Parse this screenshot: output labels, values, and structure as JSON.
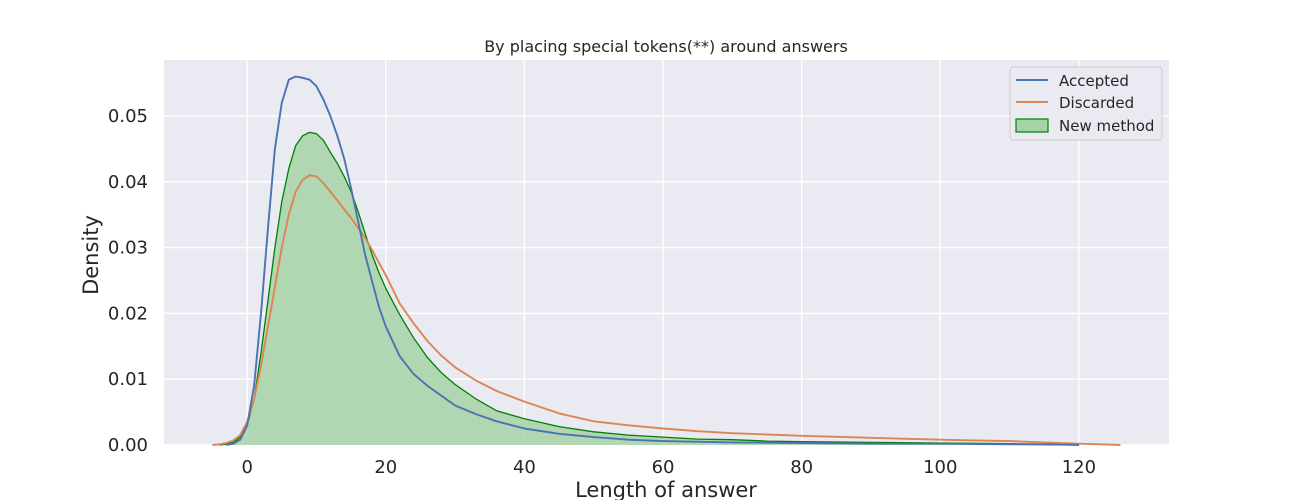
{
  "chart_data": {
    "type": "area",
    "title": "By placing special tokens(**) around answers",
    "xlabel": "Length of answer",
    "ylabel": "Density",
    "xlim": [
      -12,
      133
    ],
    "ylim": [
      0,
      0.0585
    ],
    "xticks": [
      0,
      20,
      40,
      60,
      80,
      100,
      120
    ],
    "yticks": [
      0.0,
      0.01,
      0.02,
      0.03,
      0.04,
      0.05
    ],
    "ytick_labels": [
      "0.00",
      "0.01",
      "0.02",
      "0.03",
      "0.04",
      "0.05"
    ],
    "grid": true,
    "legend_position": "upper-right",
    "series": [
      {
        "name": "Accepted",
        "style": "line",
        "color": "#4c72b0",
        "points": [
          [
            -3,
            0
          ],
          [
            -2,
            0.0002
          ],
          [
            -1,
            0.0008
          ],
          [
            0,
            0.003
          ],
          [
            1,
            0.009
          ],
          [
            2,
            0.02
          ],
          [
            3,
            0.033
          ],
          [
            4,
            0.045
          ],
          [
            5,
            0.052
          ],
          [
            6,
            0.0555
          ],
          [
            7,
            0.056
          ],
          [
            8,
            0.0558
          ],
          [
            9,
            0.0555
          ],
          [
            10,
            0.0545
          ],
          [
            11,
            0.0525
          ],
          [
            12,
            0.05
          ],
          [
            13,
            0.047
          ],
          [
            14,
            0.0435
          ],
          [
            15,
            0.039
          ],
          [
            16,
            0.034
          ],
          [
            17,
            0.029
          ],
          [
            18,
            0.025
          ],
          [
            19,
            0.021
          ],
          [
            20,
            0.018
          ],
          [
            22,
            0.0135
          ],
          [
            24,
            0.0108
          ],
          [
            26,
            0.009
          ],
          [
            28,
            0.0075
          ],
          [
            30,
            0.006
          ],
          [
            33,
            0.0047
          ],
          [
            36,
            0.0036
          ],
          [
            40,
            0.0025
          ],
          [
            45,
            0.0017
          ],
          [
            50,
            0.0012
          ],
          [
            55,
            0.0008
          ],
          [
            60,
            0.0006
          ],
          [
            70,
            0.0004
          ],
          [
            80,
            0.0003
          ],
          [
            90,
            0.0002
          ],
          [
            100,
            0.0002
          ],
          [
            110,
            0.0001
          ],
          [
            118,
            5e-05
          ],
          [
            120,
            0
          ]
        ]
      },
      {
        "name": "Discarded",
        "style": "line",
        "color": "#dd8452",
        "points": [
          [
            -5,
            0
          ],
          [
            -4,
            0.0001
          ],
          [
            -3,
            0.0003
          ],
          [
            -2,
            0.0007
          ],
          [
            -1,
            0.0015
          ],
          [
            0,
            0.0035
          ],
          [
            1,
            0.007
          ],
          [
            2,
            0.012
          ],
          [
            3,
            0.018
          ],
          [
            4,
            0.024
          ],
          [
            5,
            0.03
          ],
          [
            6,
            0.035
          ],
          [
            7,
            0.0385
          ],
          [
            8,
            0.0403
          ],
          [
            9,
            0.041
          ],
          [
            10,
            0.0408
          ],
          [
            11,
            0.0398
          ],
          [
            12,
            0.0385
          ],
          [
            13,
            0.0372
          ],
          [
            14,
            0.0358
          ],
          [
            15,
            0.0345
          ],
          [
            16,
            0.033
          ],
          [
            17,
            0.0315
          ],
          [
            18,
            0.0297
          ],
          [
            19,
            0.0277
          ],
          [
            20,
            0.0258
          ],
          [
            22,
            0.0215
          ],
          [
            24,
            0.0185
          ],
          [
            26,
            0.0158
          ],
          [
            28,
            0.0136
          ],
          [
            30,
            0.0118
          ],
          [
            33,
            0.0098
          ],
          [
            36,
            0.0082
          ],
          [
            40,
            0.0066
          ],
          [
            45,
            0.0048
          ],
          [
            50,
            0.0036
          ],
          [
            55,
            0.003
          ],
          [
            60,
            0.0025
          ],
          [
            65,
            0.0021
          ],
          [
            70,
            0.0018
          ],
          [
            75,
            0.0016
          ],
          [
            80,
            0.0014
          ],
          [
            90,
            0.0011
          ],
          [
            100,
            0.0008
          ],
          [
            105,
            0.0007
          ],
          [
            110,
            0.0006
          ],
          [
            115,
            0.0004
          ],
          [
            120,
            0.0002
          ],
          [
            125,
            5e-05
          ],
          [
            126,
            0
          ]
        ]
      },
      {
        "name": "New method",
        "style": "filled",
        "color": "#008000",
        "fill": "#a6d3a7",
        "points": [
          [
            -4,
            0
          ],
          [
            -3,
            0.0001
          ],
          [
            -2,
            0.0004
          ],
          [
            -1,
            0.0012
          ],
          [
            0,
            0.003
          ],
          [
            1,
            0.007
          ],
          [
            2,
            0.014
          ],
          [
            3,
            0.022
          ],
          [
            4,
            0.03
          ],
          [
            5,
            0.037
          ],
          [
            6,
            0.042
          ],
          [
            7,
            0.0455
          ],
          [
            8,
            0.047
          ],
          [
            9,
            0.0475
          ],
          [
            10,
            0.0473
          ],
          [
            11,
            0.0463
          ],
          [
            12,
            0.0445
          ],
          [
            13,
            0.0428
          ],
          [
            14,
            0.0408
          ],
          [
            15,
            0.0385
          ],
          [
            16,
            0.0355
          ],
          [
            17,
            0.0322
          ],
          [
            18,
            0.029
          ],
          [
            19,
            0.0262
          ],
          [
            20,
            0.0238
          ],
          [
            22,
            0.0198
          ],
          [
            24,
            0.0163
          ],
          [
            26,
            0.0133
          ],
          [
            28,
            0.011
          ],
          [
            30,
            0.0092
          ],
          [
            33,
            0.007
          ],
          [
            36,
            0.0052
          ],
          [
            40,
            0.004
          ],
          [
            45,
            0.0028
          ],
          [
            50,
            0.002
          ],
          [
            55,
            0.0015
          ],
          [
            60,
            0.0012
          ],
          [
            65,
            0.0009
          ],
          [
            70,
            0.0008
          ],
          [
            75,
            0.0006
          ],
          [
            80,
            0.0005
          ],
          [
            90,
            0.0004
          ],
          [
            100,
            0.0003
          ],
          [
            110,
            0.0002
          ],
          [
            118,
            0.0001
          ],
          [
            120,
            0
          ]
        ]
      }
    ]
  }
}
